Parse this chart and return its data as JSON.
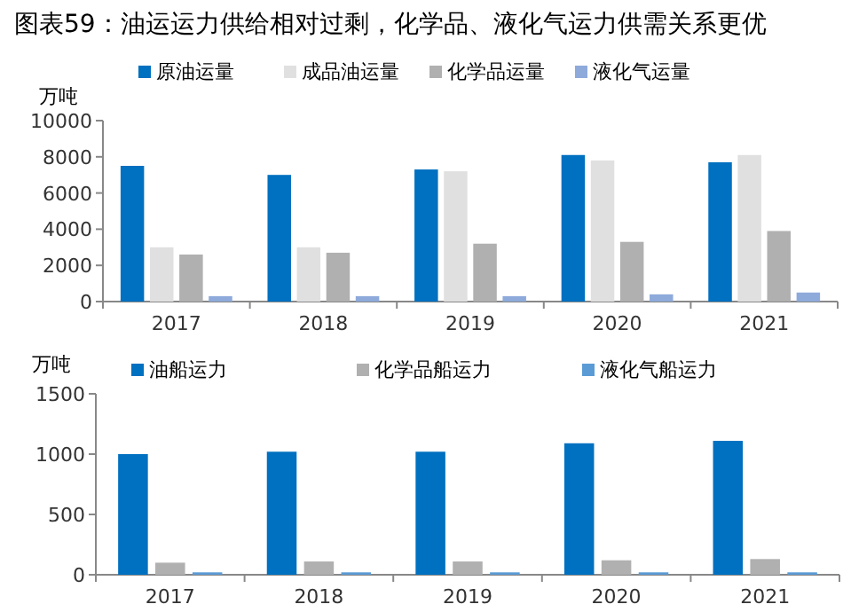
{
  "chart_data": [
    {
      "type": "bar",
      "title": "图表59：油运运力供给相对过剩，化学品、液化气运力供需关系更优",
      "ylabel": "万吨",
      "categories": [
        "2017",
        "2018",
        "2019",
        "2020",
        "2021"
      ],
      "ylim": [
        0,
        10000
      ],
      "yticks": [
        0,
        2000,
        4000,
        6000,
        8000,
        10000
      ],
      "legend": "top",
      "grid": false,
      "series": [
        {
          "name": "原油运量",
          "color": "#0070c0",
          "values": [
            7500,
            7000,
            7300,
            8100,
            7700
          ]
        },
        {
          "name": "成品油运量",
          "color": "#e0e0e0",
          "values": [
            3000,
            3000,
            7200,
            7800,
            8100
          ]
        },
        {
          "name": "化学品运量",
          "color": "#b0b0b0",
          "values": [
            2600,
            2700,
            3200,
            3300,
            3900
          ]
        },
        {
          "name": "液化气运量",
          "color": "#8eaadb",
          "values": [
            300,
            300,
            300,
            400,
            500
          ]
        }
      ]
    },
    {
      "type": "bar",
      "ylabel": "万吨",
      "categories": [
        "2017",
        "2018",
        "2019",
        "2020",
        "2021"
      ],
      "ylim": [
        0,
        1500
      ],
      "yticks": [
        0,
        500,
        1000,
        1500
      ],
      "legend": "top",
      "grid": false,
      "series": [
        {
          "name": "油船运力",
          "color": "#0070c0",
          "values": [
            1000,
            1020,
            1020,
            1090,
            1110
          ]
        },
        {
          "name": "化学品船运力",
          "color": "#b0b0b0",
          "values": [
            100,
            110,
            110,
            120,
            130
          ]
        },
        {
          "name": "液化气船运力",
          "color": "#5b9bd5",
          "values": [
            20,
            20,
            20,
            20,
            20
          ]
        }
      ]
    }
  ]
}
